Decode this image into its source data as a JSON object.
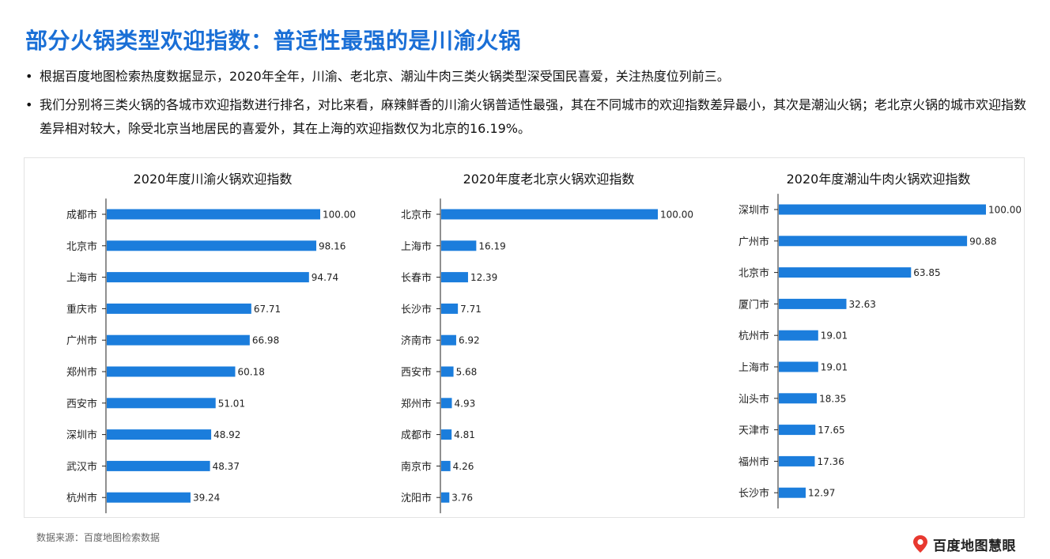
{
  "header": {
    "title": "部分火锅类型欢迎指数：普适性最强的是川渝火锅",
    "bullets": [
      "根据百度地图检索热度数据显示，2020年全年，川渝、老北京、潮汕牛肉三类火锅类型深受国民喜爱，关注热度位列前三。",
      "我们分别将三类火锅的各城市欢迎指数进行排名，对比来看，麻辣鲜香的川渝火锅普适性最强，其在不同城市的欢迎指数差异最小，其次是潮汕火锅；老北京火锅的城市欢迎指数差异相对较大，除受北京当地居民的喜爱外，其在上海的欢迎指数仅为北京的16.19%。"
    ],
    "bullet_symbol": "•"
  },
  "footer": {
    "source": "数据来源：百度地图检索数据",
    "logo_text": "百度地图慧眼"
  },
  "colors": {
    "title": "#1a6fd6",
    "bar": "#1b7ddc",
    "logo_pin": "#e8382f"
  },
  "chart_data": [
    {
      "type": "bar",
      "orientation": "horizontal",
      "title": "2020年度川渝火锅欢迎指数",
      "categories": [
        "成都市",
        "北京市",
        "上海市",
        "重庆市",
        "广州市",
        "郑州市",
        "西安市",
        "深圳市",
        "武汉市",
        "杭州市"
      ],
      "values": [
        100.0,
        98.16,
        94.74,
        67.71,
        66.98,
        60.18,
        51.01,
        48.92,
        48.37,
        39.24
      ],
      "value_labels": [
        "100.00",
        "98.16",
        "94.74",
        "67.71",
        "66.98",
        "60.18",
        "51.01",
        "48.92",
        "48.37",
        "39.24"
      ],
      "xlim": [
        0,
        100
      ],
      "grid": false,
      "legend": "none"
    },
    {
      "type": "bar",
      "orientation": "horizontal",
      "title": "2020年度老北京火锅欢迎指数",
      "categories": [
        "北京市",
        "上海市",
        "长春市",
        "长沙市",
        "济南市",
        "西安市",
        "郑州市",
        "成都市",
        "南京市",
        "沈阳市"
      ],
      "values": [
        100.0,
        16.19,
        12.39,
        7.71,
        6.92,
        5.68,
        4.93,
        4.81,
        4.26,
        3.76
      ],
      "value_labels": [
        "100.00",
        "16.19",
        "12.39",
        "7.71",
        "6.92",
        "5.68",
        "4.93",
        "4.81",
        "4.26",
        "3.76"
      ],
      "xlim": [
        0,
        100
      ],
      "grid": false,
      "legend": "none"
    },
    {
      "type": "bar",
      "orientation": "horizontal",
      "title": "2020年度潮汕牛肉火锅欢迎指数",
      "categories": [
        "深圳市",
        "广州市",
        "北京市",
        "厦门市",
        "杭州市",
        "上海市",
        "汕头市",
        "天津市",
        "福州市",
        "长沙市"
      ],
      "values": [
        100.0,
        90.88,
        63.85,
        32.63,
        19.01,
        19.01,
        18.35,
        17.65,
        17.36,
        12.97
      ],
      "value_labels": [
        "100.00",
        "90.88",
        "63.85",
        "32.63",
        "19.01",
        "19.01",
        "18.35",
        "17.65",
        "17.36",
        "12.97"
      ],
      "xlim": [
        0,
        100
      ],
      "grid": false,
      "legend": "none"
    }
  ]
}
